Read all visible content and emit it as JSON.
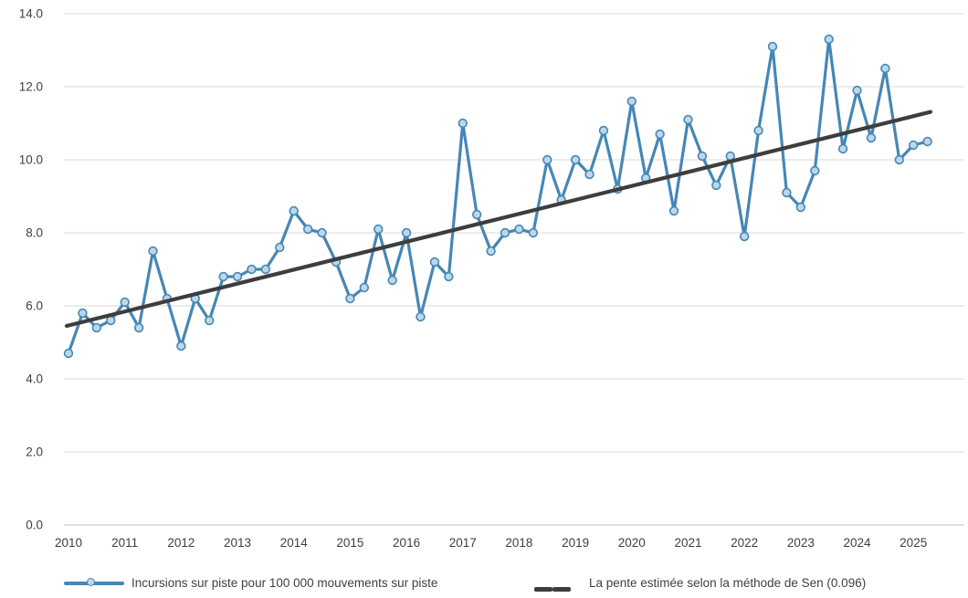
{
  "chart_data": {
    "type": "line",
    "title": "",
    "grid": "horizontal",
    "legend_position": "bottom",
    "ylim": [
      0.0,
      14.0
    ],
    "y_ticks": [
      0,
      2,
      4,
      6,
      8,
      10,
      12,
      14
    ],
    "y_tick_labels": [
      "0.0",
      "2.0",
      "4.0",
      "6.0",
      "8.0",
      "10.0",
      "12.0",
      "14.0"
    ],
    "x_tick_labels": [
      "2010",
      "2011",
      "2012",
      "2013",
      "2014",
      "2015",
      "2016",
      "2017",
      "2018",
      "2019",
      "2020",
      "2021",
      "2022",
      "2023",
      "2024",
      "2025"
    ],
    "x_unit": "quarter",
    "x_start": "2010-Q1",
    "x_end": "2025-Q2",
    "series": [
      {
        "name": "Incursions sur piste pour 100 000 mouvements sur piste",
        "type": "line+markers",
        "color": "#4587B5",
        "marker_fill": "#BDD7EA",
        "values": [
          4.7,
          5.8,
          5.4,
          5.6,
          6.1,
          5.4,
          7.5,
          6.2,
          4.9,
          6.2,
          5.6,
          6.8,
          6.8,
          7.0,
          7.0,
          7.6,
          8.6,
          8.1,
          8.0,
          7.2,
          6.2,
          6.5,
          8.1,
          6.7,
          8.0,
          5.7,
          7.2,
          6.8,
          11.0,
          8.5,
          7.5,
          8.0,
          8.1,
          8.0,
          10.0,
          8.9,
          10.0,
          9.6,
          10.8,
          9.2,
          11.6,
          9.5,
          10.7,
          8.6,
          11.1,
          10.1,
          9.3,
          10.1,
          7.9,
          10.8,
          13.1,
          9.1,
          8.7,
          9.7,
          13.3,
          10.3,
          11.9,
          10.6,
          12.5,
          10.0,
          10.4,
          10.5
        ]
      },
      {
        "name": "La pente estimée selon la méthode de Sen (0.096)",
        "type": "trend",
        "color": "#3D3D3D",
        "sen_slope_per_quarter": 0.096,
        "start_value": 5.45,
        "end_value": 11.31
      }
    ],
    "colors": {
      "gridline": "#D9D9D9",
      "axis_line": "#BFBFBF",
      "tick_text": "#404040"
    }
  }
}
